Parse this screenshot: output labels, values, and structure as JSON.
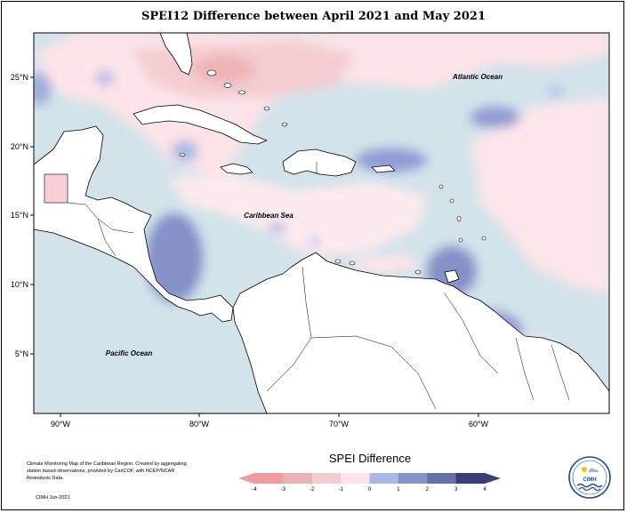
{
  "title": "SPEI12 Difference between April 2021 and May 2021",
  "map": {
    "x_ticks": [
      "90°W",
      "80°W",
      "70°W",
      "60°W"
    ],
    "y_ticks": [
      "25°N",
      "20°N",
      "15°N",
      "10°N",
      "5°N"
    ],
    "ocean_labels": {
      "atlantic": "Atlantic Ocean",
      "caribbean": "Caribbean Sea",
      "pacific": "Pacific Ocean"
    },
    "colors": {
      "ocean_base": "#cfe2ea",
      "land": "#ffffff",
      "coast": "#000000"
    }
  },
  "legend": {
    "title": "SPEI Difference",
    "ticks": [
      "-4",
      "-3",
      "-2",
      "-1",
      "0",
      "1",
      "2",
      "3",
      "4"
    ],
    "colors": [
      "#f29a9c",
      "#e9b3b3",
      "#f3cdd2",
      "#fbe5e8",
      "#d9e6ec",
      "#a9b8e5",
      "#8591c7",
      "#6570a8",
      "#3a3f7c"
    ]
  },
  "credit": {
    "text": "Climate Monitoring Map of the Caribbean Region. Created by aggregating station based observations, provided by CariCOF, with NCEP/NCAR Reanalysis Data.",
    "date": "CIMH Jun-2021"
  },
  "logo": {
    "text": "CIMH"
  }
}
